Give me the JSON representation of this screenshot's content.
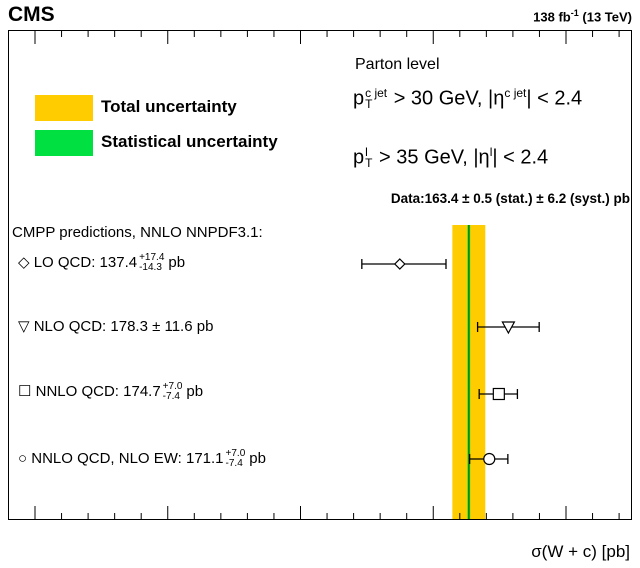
{
  "header": {
    "experiment": "CMS",
    "lumi": "138",
    "lumi_unit": "fb",
    "lumi_exp": "-1",
    "energy": "(13 TeV)"
  },
  "legend": {
    "total": "Total uncertainty",
    "stat": "Statistical uncertainty",
    "total_color": "#ffcc00",
    "stat_color": "#00e040"
  },
  "selection": {
    "level": "Parton level",
    "line1_a": "p",
    "line1_sup": "c jet",
    "line1_sub": "T",
    "line1_b": " > 30 GeV, |η",
    "line1_sup2": "c jet",
    "line1_c": "| < 2.4",
    "line2_a": "p",
    "line2_sup": "l",
    "line2_sub": "T",
    "line2_b": " > 35 GeV, |η",
    "line2_sup2": "l",
    "line2_c": "| < 2.4"
  },
  "data_label": "Data:163.4 ± 0.5 (stat.) ± 6.2 (syst.) pb",
  "predictions_title": "CMPP predictions, NNLO NNPDF3.1:",
  "predictions": [
    {
      "marker": "diamond",
      "label": "LO QCD: 137.4",
      "sup": "+17.4",
      "sub": "-14.3",
      "unit": "pb",
      "value": 137.4,
      "err_up": 17.4,
      "err_down": 14.3
    },
    {
      "marker": "triangle-down",
      "label": "NLO QCD: 178.3 ± 11.6  pb",
      "sup": "",
      "sub": "",
      "unit": "",
      "value": 178.3,
      "err_up": 11.6,
      "err_down": 11.6
    },
    {
      "marker": "square",
      "label": "NNLO QCD: 174.7",
      "sup": "+7.0",
      "sub": "-7.4",
      "unit": "pb",
      "value": 174.7,
      "err_up": 7.0,
      "err_down": 7.4
    },
    {
      "marker": "circle",
      "label": "NNLO QCD, NLO EW: 171.1",
      "sup": "+7.0",
      "sub": "-7.4",
      "unit": "pb",
      "value": 171.1,
      "err_up": 7.0,
      "err_down": 7.4
    }
  ],
  "chart_data": {
    "type": "scatter",
    "title": "",
    "xlabel": "σ(W + c) [pb]",
    "ylabel": "",
    "xlim": [
      -10,
      220
    ],
    "xticks": [
      0,
      50,
      100,
      150,
      200
    ],
    "measurement": {
      "value": 163.4,
      "stat": 0.5,
      "syst": 6.2,
      "total_band": [
        157.2,
        169.6
      ]
    },
    "predictions": [
      {
        "name": "LO QCD",
        "value": 137.4,
        "err_up": 17.4,
        "err_down": 14.3
      },
      {
        "name": "NLO QCD",
        "value": 178.3,
        "err_up": 11.6,
        "err_down": 11.6
      },
      {
        "name": "NNLO QCD",
        "value": 174.7,
        "err_up": 7.0,
        "err_down": 7.4
      },
      {
        "name": "NNLO QCD, NLO EW",
        "value": 171.1,
        "err_up": 7.0,
        "err_down": 7.4
      }
    ],
    "grid": false,
    "legend_position": "top-left"
  }
}
